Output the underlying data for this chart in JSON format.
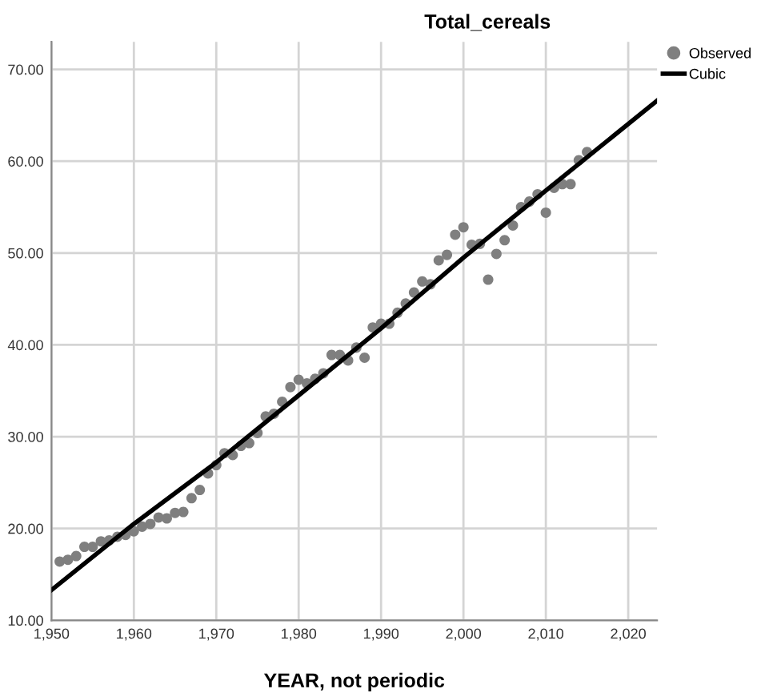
{
  "chart_data": {
    "type": "scatter",
    "title": "Total_cereals",
    "xlabel": "YEAR, not periodic",
    "xlim": [
      1950,
      2023.5
    ],
    "ylim": [
      10,
      73
    ],
    "xticks": [
      {
        "value": 1950,
        "label": "1,950"
      },
      {
        "value": 1960,
        "label": "1,960"
      },
      {
        "value": 1970,
        "label": "1,970"
      },
      {
        "value": 1980,
        "label": "1,980"
      },
      {
        "value": 1990,
        "label": "1,990"
      },
      {
        "value": 2000,
        "label": "2,000"
      },
      {
        "value": 2010,
        "label": "2,010"
      },
      {
        "value": 2020,
        "label": "2,020"
      }
    ],
    "yticks": [
      {
        "value": 10,
        "label": "10.00"
      },
      {
        "value": 20,
        "label": "20.00"
      },
      {
        "value": 30,
        "label": "30.00"
      },
      {
        "value": 40,
        "label": "40.00"
      },
      {
        "value": 50,
        "label": "50.00"
      },
      {
        "value": 60,
        "label": "60.00"
      },
      {
        "value": 70,
        "label": "70.00"
      }
    ],
    "grid": true,
    "legend": "top right",
    "marker": "circle",
    "series": [
      {
        "name": "Observed",
        "color": "#7f7f7f",
        "x": [
          1951,
          1952,
          1953,
          1954,
          1955,
          1956,
          1957,
          1958,
          1959,
          1960,
          1961,
          1962,
          1963,
          1964,
          1965,
          1966,
          1967,
          1968,
          1969,
          1970,
          1971,
          1972,
          1973,
          1974,
          1975,
          1976,
          1977,
          1978,
          1979,
          1980,
          1981,
          1982,
          1983,
          1984,
          1985,
          1986,
          1987,
          1988,
          1989,
          1990,
          1991,
          1992,
          1993,
          1994,
          1995,
          1996,
          1997,
          1998,
          1999,
          2000,
          2001,
          2002,
          2003,
          2004,
          2005,
          2006,
          2007,
          2008,
          2009,
          2010,
          2011,
          2012,
          2013,
          2014,
          2015
        ],
        "values": [
          16.4,
          16.6,
          17.0,
          18.0,
          18.0,
          18.6,
          18.7,
          19.1,
          19.3,
          19.7,
          20.2,
          20.5,
          21.2,
          21.1,
          21.7,
          21.8,
          23.3,
          24.2,
          26.0,
          26.9,
          28.2,
          28.0,
          29.0,
          29.3,
          30.4,
          32.2,
          32.5,
          33.8,
          35.4,
          36.2,
          35.8,
          36.3,
          36.9,
          38.9,
          38.9,
          38.3,
          39.7,
          38.6,
          41.9,
          42.3,
          42.3,
          43.5,
          44.5,
          45.7,
          46.9,
          46.6,
          49.2,
          49.8,
          52.0,
          52.8,
          50.9,
          51.0,
          47.1,
          49.9,
          51.4,
          53.0,
          55.0,
          55.6,
          56.4,
          54.4,
          57.1,
          57.5,
          57.5,
          60.1,
          61.0
        ]
      },
      {
        "name": "Cubic",
        "type": "line",
        "color": "#000000",
        "marker": "none",
        "x": [
          1950,
          1960,
          1970,
          1980,
          1990,
          2000,
          2010,
          2023.5
        ],
        "values": [
          13.3,
          20.5,
          27.2,
          34.5,
          41.8,
          49.5,
          56.8,
          66.6
        ]
      }
    ]
  }
}
